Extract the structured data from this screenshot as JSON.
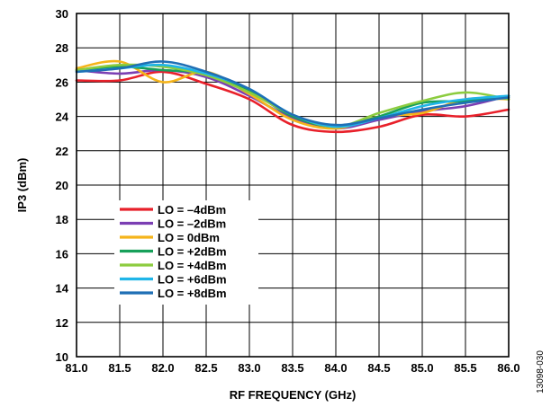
{
  "chart_data": {
    "type": "line",
    "title": "",
    "xlabel": "RF FREQUENCY (GHz)",
    "ylabel": "IP3 (dBm)",
    "xlim": [
      81.0,
      86.0
    ],
    "ylim": [
      10,
      30
    ],
    "x_ticks": [
      "81.0",
      "81.5",
      "82.0",
      "82.5",
      "83.0",
      "83.5",
      "84.0",
      "84.5",
      "85.0",
      "85.5",
      "86.0"
    ],
    "y_ticks": [
      "10",
      "12",
      "14",
      "16",
      "18",
      "20",
      "22",
      "24",
      "26",
      "28",
      "30"
    ],
    "grid": true,
    "legend_position": "lower-left",
    "figure_id": "13098-030",
    "x": [
      81.0,
      81.5,
      82.0,
      82.5,
      83.0,
      83.5,
      84.0,
      84.5,
      85.0,
      85.5,
      86.0
    ],
    "series": [
      {
        "name": "LO = –4dBm",
        "color": "#e8202a",
        "values": [
          26.1,
          26.1,
          26.6,
          25.9,
          25.0,
          23.5,
          23.1,
          23.4,
          24.1,
          24.0,
          24.4
        ]
      },
      {
        "name": "LO = –2dBm",
        "color": "#7b3fb3",
        "values": [
          26.7,
          26.5,
          26.7,
          26.3,
          25.2,
          23.9,
          23.3,
          23.8,
          24.3,
          24.6,
          25.2
        ]
      },
      {
        "name": "LO = 0dBm",
        "color": "#f5b41a",
        "values": [
          26.8,
          27.2,
          26.0,
          26.6,
          25.3,
          23.8,
          23.3,
          24.0,
          24.2,
          25.0,
          25.0
        ]
      },
      {
        "name": "LO = +2dBm",
        "color": "#17a05a",
        "values": [
          26.7,
          26.9,
          26.7,
          26.5,
          25.5,
          24.0,
          23.4,
          24.0,
          24.8,
          24.9,
          25.2
        ]
      },
      {
        "name": "LO = +4dBm",
        "color": "#8ccc3f",
        "values": [
          26.7,
          27.0,
          26.9,
          26.4,
          25.4,
          24.1,
          23.4,
          24.2,
          24.9,
          25.4,
          25.0
        ]
      },
      {
        "name": "LO = +6dBm",
        "color": "#1fb5e8",
        "values": [
          26.6,
          26.8,
          27.0,
          26.5,
          25.6,
          24.1,
          23.4,
          23.9,
          24.6,
          25.0,
          25.2
        ]
      },
      {
        "name": "LO = +8dBm",
        "color": "#1f6fb5",
        "values": [
          26.6,
          26.8,
          27.2,
          26.6,
          25.6,
          24.1,
          23.5,
          23.9,
          24.4,
          24.8,
          25.1
        ]
      }
    ]
  }
}
